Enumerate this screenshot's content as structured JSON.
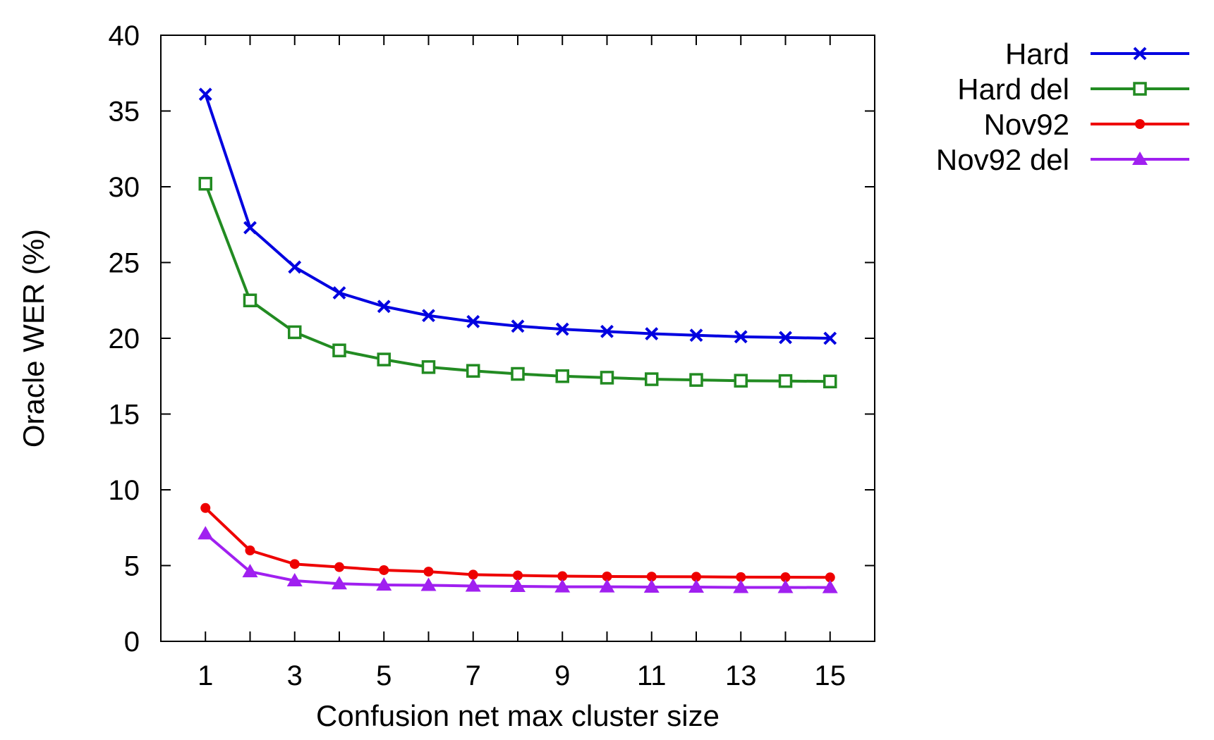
{
  "chart_data": {
    "type": "line",
    "xlabel": "Confusion net max cluster size",
    "ylabel": "Oracle WER (%)",
    "xlim": [
      0,
      16
    ],
    "ylim": [
      0,
      40
    ],
    "xticks": [
      1,
      3,
      5,
      7,
      9,
      11,
      13,
      15
    ],
    "yticks": [
      0,
      5,
      10,
      15,
      20,
      25,
      30,
      35,
      40
    ],
    "grid": false,
    "legend_position": "outside-top-right",
    "x": [
      1,
      2,
      3,
      4,
      5,
      6,
      7,
      8,
      9,
      10,
      11,
      12,
      13,
      14,
      15
    ],
    "series": [
      {
        "name": "Hard",
        "color": "#0000e0",
        "marker": "x",
        "values": [
          36.1,
          27.3,
          24.7,
          23.0,
          22.1,
          21.5,
          21.1,
          20.8,
          20.6,
          20.45,
          20.3,
          20.2,
          20.1,
          20.05,
          20.0
        ]
      },
      {
        "name": "Hard del",
        "color": "#228b22",
        "marker": "square-open",
        "values": [
          30.2,
          22.5,
          20.4,
          19.2,
          18.6,
          18.1,
          17.85,
          17.65,
          17.5,
          17.4,
          17.3,
          17.25,
          17.2,
          17.18,
          17.15
        ]
      },
      {
        "name": "Nov92",
        "color": "#ee0000",
        "marker": "circle",
        "values": [
          8.8,
          6.0,
          5.1,
          4.9,
          4.7,
          4.6,
          4.4,
          4.35,
          4.3,
          4.28,
          4.27,
          4.26,
          4.24,
          4.23,
          4.22
        ]
      },
      {
        "name": "Nov92 del",
        "color": "#a020f0",
        "marker": "triangle",
        "values": [
          7.1,
          4.6,
          4.0,
          3.8,
          3.72,
          3.7,
          3.65,
          3.63,
          3.6,
          3.6,
          3.58,
          3.58,
          3.56,
          3.56,
          3.55
        ]
      }
    ]
  }
}
